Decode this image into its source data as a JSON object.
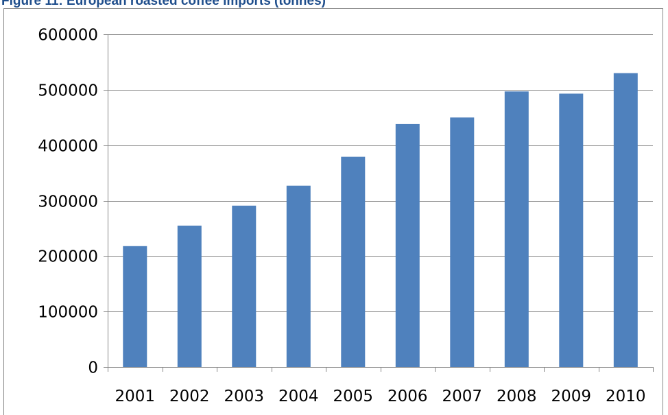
{
  "figure": {
    "title": "Figure 11: European roasted coffee imports (tonnes)"
  },
  "chart_data": {
    "type": "bar",
    "title": "Figure 11: European roasted coffee imports (tonnes)",
    "xlabel": "",
    "ylabel": "",
    "categories": [
      "2001",
      "2002",
      "2003",
      "2004",
      "2005",
      "2006",
      "2007",
      "2008",
      "2009",
      "2010"
    ],
    "series": [
      {
        "values": [
          218000,
          255000,
          291000,
          327000,
          379000,
          438000,
          450000,
          497000,
          493000,
          530000
        ]
      }
    ],
    "ylim": [
      0,
      600000
    ],
    "yticks": [
      "0",
      "100000",
      "200000",
      "300000",
      "400000",
      "500000",
      "600000"
    ],
    "grid": true,
    "legend": "none",
    "colors": {
      "bar": "#4f81bd",
      "grid": "#868686",
      "axis": "#868686"
    }
  }
}
